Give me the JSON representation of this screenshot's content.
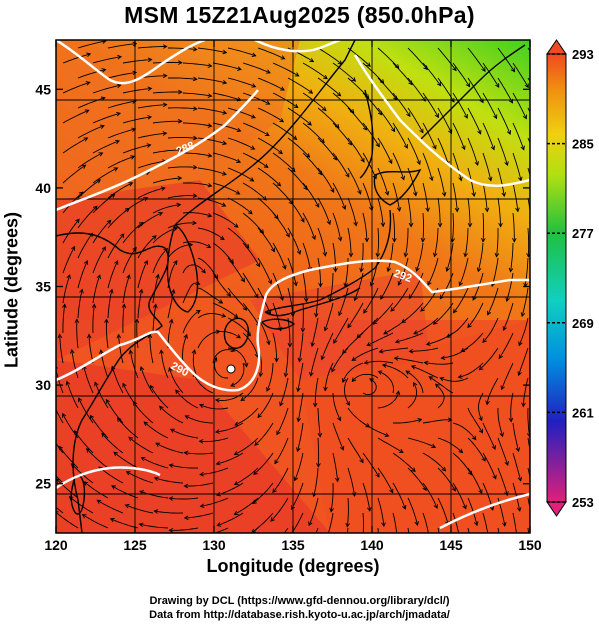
{
  "title": "MSM 15Z21Aug2025 (850.0hPa)",
  "x_axis": {
    "label": "Longitude (degrees)",
    "range": [
      120,
      150
    ],
    "ticks": [
      "120",
      "125",
      "130",
      "135",
      "140",
      "145",
      "150"
    ]
  },
  "y_axis": {
    "label": "Latitude  (degrees)",
    "range": [
      22.5,
      47.5
    ],
    "ticks": [
      "25",
      "30",
      "35",
      "40",
      "45"
    ]
  },
  "colorbar": {
    "min": 253,
    "max": 293,
    "ticks": [
      "293",
      "285",
      "277",
      "269",
      "261",
      "253"
    ],
    "colors": [
      "#e0207a",
      "#2020c0",
      "#0090e0",
      "#10d0c0",
      "#20c040",
      "#b0e010",
      "#f0d010",
      "#f09010",
      "#f04a20"
    ]
  },
  "contour_labels": [
    "288",
    "290",
    "292",
    "290"
  ],
  "footer": {
    "line1": "Drawing by DCL (https://www.gfd-dennou.org/library/dcl/)",
    "line2": "Data from http://database.rish.kyoto-u.ac.jp/arch/jmadata/"
  }
}
